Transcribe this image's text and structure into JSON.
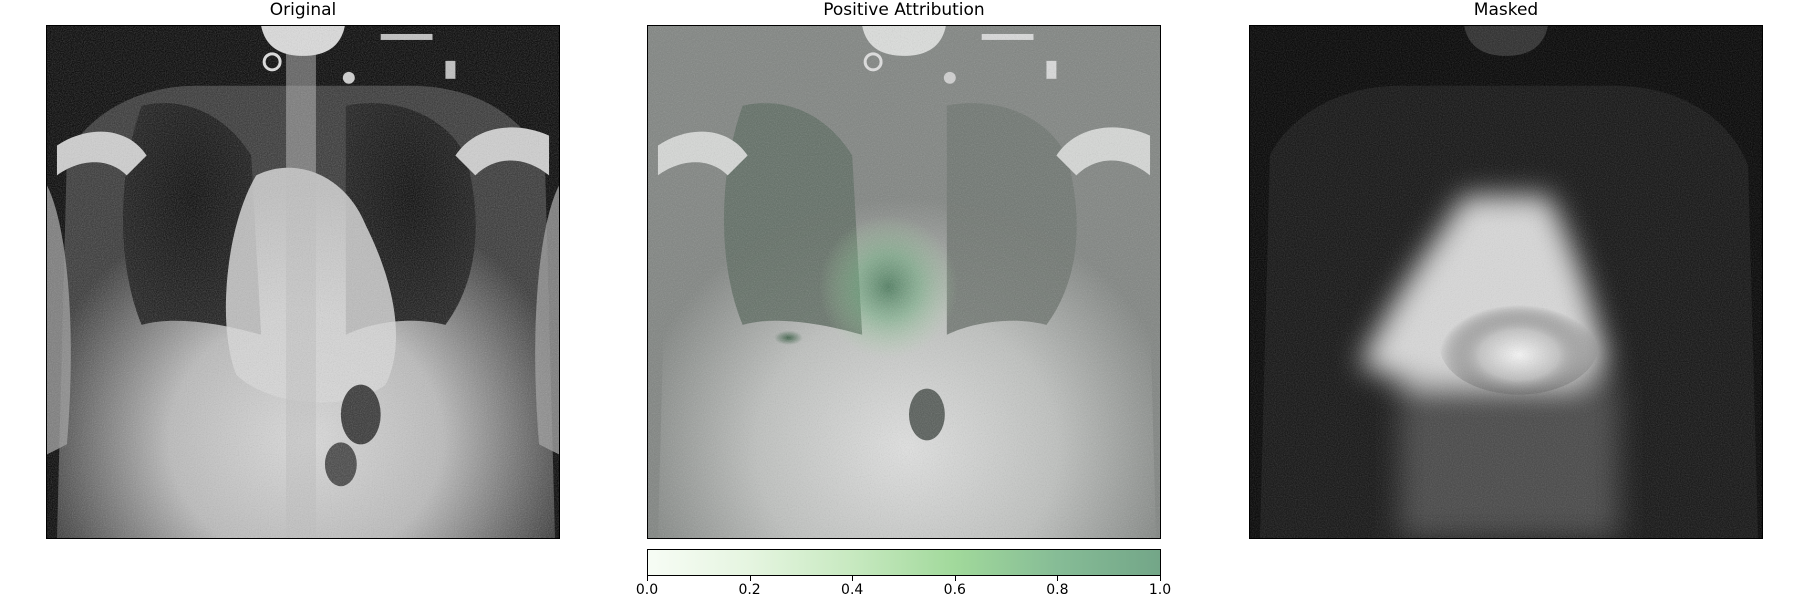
{
  "panels": [
    {
      "title": "Original",
      "image": "chest-xray-grayscale"
    },
    {
      "title": "Positive Attribution",
      "image": "chest-xray-green-attribution-overlay"
    },
    {
      "title": "Masked",
      "image": "chest-xray-masked-by-attribution"
    }
  ],
  "colorbar": {
    "ticks": [
      "0.0",
      "0.2",
      "0.4",
      "0.6",
      "0.8",
      "1.0"
    ],
    "range": [
      0.0,
      1.0
    ],
    "colors": [
      "#f7fcf5",
      "#e5f5e0",
      "#c7e9c0",
      "#a1d99b",
      "#86bc96",
      "#73a688"
    ]
  },
  "colors": {
    "overlay_gray": "#7f8380",
    "attribution_green": "#2e8b57"
  }
}
